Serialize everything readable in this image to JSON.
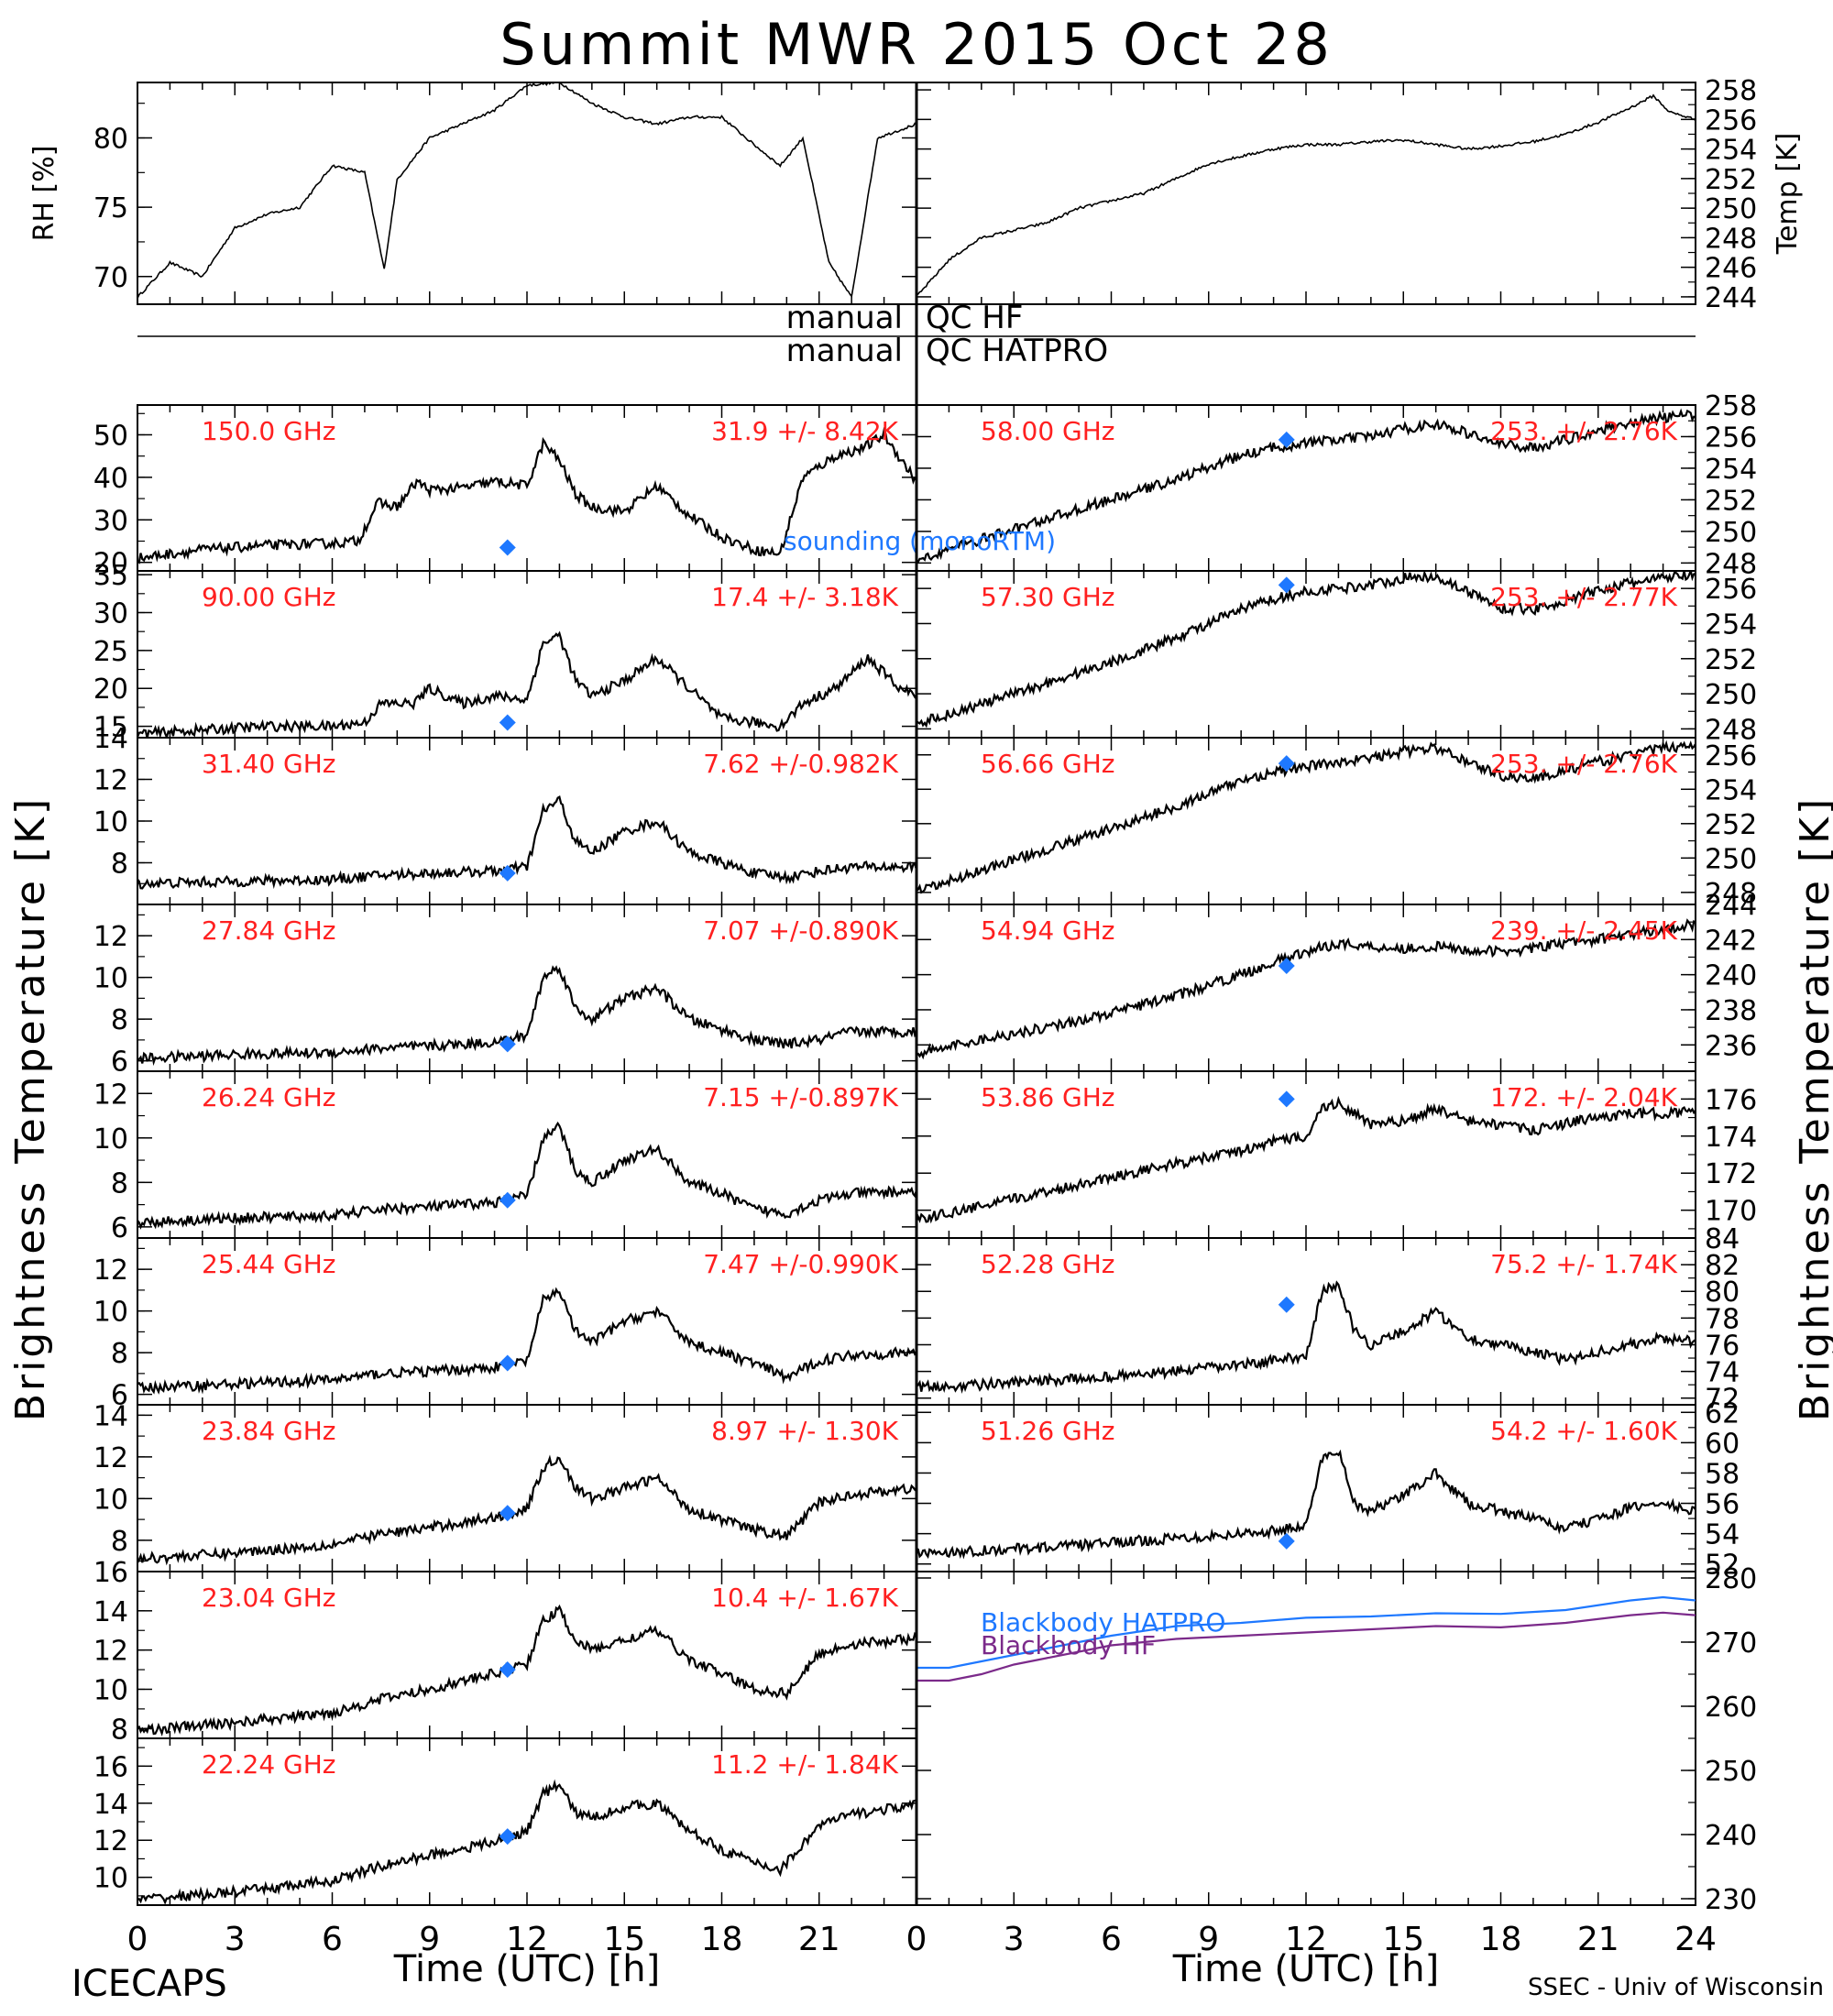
{
  "title": "Summit MWR 2015 Oct 28",
  "footer": {
    "left": "ICECAPS",
    "right": "SSEC - Univ of Wisconsin"
  },
  "x_axis": {
    "label": "Time (UTC) [h]",
    "ticks": [
      0,
      3,
      6,
      9,
      12,
      15,
      18,
      21,
      24
    ],
    "left_ticks": [
      "0",
      "3",
      "6",
      "9",
      "12",
      "15",
      "18",
      "21",
      ""
    ],
    "right_ticks": [
      "0",
      "3",
      "6",
      "9",
      "12",
      "15",
      "18",
      "21",
      "24"
    ],
    "xlim": [
      0,
      24
    ]
  },
  "y_axis_labels": {
    "left": "Brightness Temperature [K]",
    "right": "Brightness Temperature [K]"
  },
  "qc": {
    "labels_left": [
      "manual",
      "manual"
    ],
    "labels_right": [
      "QC HF",
      "QC HATPRO"
    ]
  },
  "colors": {
    "trace": "#000000",
    "annotation": "#ff2020",
    "sounding": "#1e78ff",
    "blackbody_hatpro": "#1e78ff",
    "blackbody_hf": "#7b2a8a"
  },
  "legend_sounding": "sounding (monoRTM)",
  "chart_data": [
    {
      "type": "line",
      "id": "rh",
      "ylabel": "RH [%]",
      "ylim": [
        68,
        84
      ],
      "yticks": [
        "70",
        "75",
        "80"
      ],
      "x": [
        0,
        1,
        2,
        3,
        4,
        5,
        6,
        7,
        7.6,
        8,
        9,
        10,
        11,
        12,
        13,
        14,
        15,
        16,
        17,
        18,
        19,
        19.8,
        20.5,
        21.3,
        22,
        22.8,
        24
      ],
      "y": [
        68.5,
        71,
        70,
        73.5,
        74.5,
        75,
        78,
        77.5,
        70.5,
        77,
        80,
        81,
        82,
        83.8,
        84,
        82.5,
        81.5,
        81,
        81.5,
        81.5,
        79.5,
        78,
        80,
        71,
        68.5,
        80,
        81
      ]
    },
    {
      "type": "line",
      "id": "temp",
      "ylabel": "Temp [K]",
      "ylim": [
        243.5,
        258.5
      ],
      "yticks": [
        "244",
        "246",
        "248",
        "250",
        "252",
        "254",
        "256",
        "258"
      ],
      "x": [
        0,
        1,
        2,
        3,
        4,
        5,
        6,
        7,
        8,
        9,
        10,
        11,
        12,
        13,
        14,
        15,
        16,
        17,
        18,
        19,
        20,
        21,
        22,
        22.7,
        23.2,
        24
      ],
      "y": [
        244,
        246.5,
        248,
        248.5,
        249,
        250,
        250.5,
        251,
        252,
        253,
        253.5,
        254,
        254.3,
        254.3,
        254.5,
        254.6,
        254.3,
        254.0,
        254.2,
        254.5,
        255,
        255.8,
        256.8,
        257.6,
        256.5,
        256
      ]
    },
    {
      "type": "line",
      "id": "ch150",
      "label": "150.0 GHz",
      "stats": "31.9 +/- 8.42K",
      "ylim": [
        18,
        57
      ],
      "yticks": [
        "20",
        "30",
        "40",
        "50"
      ],
      "sounding": [
        11.4,
        23.5
      ],
      "x": [
        0,
        2,
        4,
        6,
        6.8,
        7.4,
        8,
        8.6,
        9,
        10,
        11,
        12,
        12.5,
        13,
        13.5,
        14,
        15,
        16,
        17,
        18,
        19,
        19.8,
        20.5,
        21.5,
        22.4,
        23,
        24
      ],
      "y": [
        21,
        23,
        24,
        24.5,
        25,
        34,
        33,
        39,
        37,
        37.5,
        39,
        38,
        48,
        44,
        36,
        33,
        32,
        38,
        31,
        26,
        23,
        22,
        40,
        45,
        47,
        50,
        39
      ]
    },
    {
      "type": "line",
      "id": "ch090",
      "label": "90.00 GHz",
      "stats": "17.4 +/- 3.18K",
      "ylim": [
        13.5,
        35.5
      ],
      "yticks": [
        "15",
        "20",
        "25",
        "30",
        "35"
      ],
      "sounding": [
        11.4,
        15.5
      ],
      "x": [
        0,
        2,
        4,
        6,
        7,
        7.5,
        8.5,
        9,
        10,
        11,
        12,
        12.5,
        13,
        13.5,
        14,
        15,
        16,
        17,
        18,
        19,
        19.8,
        20.5,
        21.5,
        22.5,
        23.5,
        24
      ],
      "y": [
        14,
        14.5,
        15,
        15,
        15.5,
        18,
        18,
        20,
        18,
        19,
        18.5,
        26,
        27,
        21,
        19,
        21,
        24,
        20,
        16,
        15.5,
        15,
        18,
        20,
        24,
        20,
        19
      ]
    },
    {
      "type": "line",
      "id": "ch3140",
      "label": "31.40 GHz",
      "stats": "7.62 +/-0.982K",
      "ylim": [
        6,
        14
      ],
      "yticks": [
        "8",
        "10",
        "12",
        "14"
      ],
      "sounding": [
        11.4,
        7.5
      ],
      "x": [
        0,
        3,
        6,
        7.5,
        9,
        11,
        12,
        12.5,
        13,
        13.5,
        14,
        15,
        16,
        17,
        18,
        19,
        20,
        21,
        22,
        24
      ],
      "y": [
        7,
        7.1,
        7.2,
        7.4,
        7.5,
        7.6,
        7.8,
        10.5,
        11,
        9,
        8.5,
        9.5,
        10,
        8.5,
        8,
        7.5,
        7.3,
        7.6,
        7.8,
        7.8
      ]
    },
    {
      "type": "line",
      "id": "ch2784",
      "label": "27.84 GHz",
      "stats": "7.07 +/-0.890K",
      "ylim": [
        5.5,
        13.5
      ],
      "yticks": [
        "6",
        "8",
        "10",
        "12"
      ],
      "sounding": [
        11.4,
        6.8
      ],
      "x": [
        0,
        3,
        6,
        7.5,
        9,
        11,
        12,
        12.5,
        13,
        13.5,
        14,
        15,
        16,
        17,
        18,
        19,
        20,
        21,
        22,
        24
      ],
      "y": [
        6.1,
        6.3,
        6.4,
        6.6,
        6.7,
        6.9,
        7.2,
        10,
        10.5,
        8.5,
        8,
        9,
        9.5,
        8,
        7.5,
        7,
        6.8,
        7,
        7.4,
        7.4
      ]
    },
    {
      "type": "line",
      "id": "ch2624",
      "label": "26.24 GHz",
      "stats": "7.15 +/-0.897K",
      "ylim": [
        5.5,
        13
      ],
      "yticks": [
        "6",
        "8",
        "10",
        "12"
      ],
      "sounding": [
        11.4,
        7.2
      ],
      "x": [
        0,
        3,
        6,
        7.5,
        9,
        11,
        12,
        12.5,
        13,
        13.5,
        14,
        15,
        16,
        17,
        18,
        19,
        20,
        21,
        22,
        24
      ],
      "y": [
        6.2,
        6.4,
        6.5,
        6.8,
        6.9,
        7.1,
        7.4,
        10,
        10.5,
        8.5,
        8,
        9,
        9.5,
        8,
        7.5,
        6.8,
        6.6,
        7.2,
        7.5,
        7.6
      ]
    },
    {
      "type": "line",
      "id": "ch2544",
      "label": "25.44 GHz",
      "stats": "7.47 +/-0.990K",
      "ylim": [
        5.5,
        13.5
      ],
      "yticks": [
        "6",
        "8",
        "10",
        "12"
      ],
      "sounding": [
        11.4,
        7.5
      ],
      "x": [
        0,
        3,
        6,
        7.5,
        9,
        11,
        12,
        12.5,
        13,
        13.5,
        14,
        15,
        16,
        17,
        18,
        19,
        20,
        21,
        22,
        24
      ],
      "y": [
        6.3,
        6.5,
        6.7,
        7,
        7.1,
        7.3,
        7.6,
        10.5,
        11,
        9,
        8.5,
        9.5,
        10,
        8.5,
        8,
        7.5,
        6.8,
        7.6,
        7.9,
        8
      ]
    },
    {
      "type": "line",
      "id": "ch2384",
      "label": "23.84 GHz",
      "stats": "8.97 +/- 1.30K",
      "ylim": [
        6.5,
        14.5
      ],
      "yticks": [
        "8",
        "10",
        "12",
        "14"
      ],
      "sounding": [
        11.4,
        9.3
      ],
      "x": [
        0,
        3,
        6,
        7.5,
        9,
        11,
        12,
        12.5,
        13,
        13.5,
        14,
        15,
        16,
        17,
        18,
        19,
        20,
        21,
        22,
        24
      ],
      "y": [
        7.1,
        7.4,
        7.8,
        8.3,
        8.6,
        9.1,
        9.5,
        11.5,
        12,
        10.5,
        10,
        10.5,
        11,
        9.5,
        9,
        8.5,
        8.2,
        9.8,
        10.2,
        10.5
      ]
    },
    {
      "type": "line",
      "id": "ch2304",
      "label": "23.04 GHz",
      "stats": "10.4 +/- 1.67K",
      "ylim": [
        7.5,
        16
      ],
      "yticks": [
        "8",
        "10",
        "12",
        "14",
        "16"
      ],
      "sounding": [
        11.4,
        11
      ],
      "x": [
        0,
        3,
        6,
        7.5,
        9,
        11,
        12,
        12.5,
        13,
        13.5,
        14,
        15,
        16,
        17,
        18,
        19,
        20,
        21,
        22,
        24
      ],
      "y": [
        7.9,
        8.3,
        8.8,
        9.5,
        10,
        10.8,
        11.3,
        13.5,
        14,
        12.5,
        12,
        12.5,
        13,
        11.5,
        10.8,
        10,
        9.8,
        11.8,
        12.3,
        12.6
      ]
    },
    {
      "type": "line",
      "id": "ch2224",
      "label": "22.24 GHz",
      "stats": "11.2 +/- 1.84K",
      "ylim": [
        8.5,
        17.5
      ],
      "yticks": [
        "10",
        "12",
        "14",
        "16"
      ],
      "sounding": [
        11.4,
        12.2
      ],
      "x": [
        0,
        3,
        6,
        7.5,
        9,
        11,
        12,
        12.5,
        13,
        13.5,
        14,
        15,
        16,
        17,
        18,
        19,
        19.8,
        21,
        22,
        24
      ],
      "y": [
        8.8,
        9.2,
        9.8,
        10.6,
        11.2,
        11.9,
        12.5,
        14.5,
        15,
        13.5,
        13.2,
        13.8,
        14,
        12.5,
        11.5,
        10.8,
        10.4,
        12.8,
        13.4,
        13.9
      ]
    },
    {
      "type": "line",
      "id": "ch5800",
      "label": "58.00 GHz",
      "stats": "253. +/- 2.76K",
      "ylim": [
        247.5,
        258
      ],
      "yticks": [
        "248",
        "250",
        "252",
        "254",
        "256",
        "258"
      ],
      "sounding": [
        11.4,
        255.8
      ],
      "x": [
        0,
        2,
        4,
        6,
        8,
        10,
        11,
        12,
        13,
        14,
        15,
        16,
        17,
        18,
        19,
        20,
        21,
        22,
        23,
        24
      ],
      "y": [
        248.2,
        249.5,
        250.8,
        252,
        253.3,
        254.8,
        255.3,
        255.6,
        255.8,
        256,
        256.5,
        256.8,
        256.2,
        255.5,
        255.3,
        255.8,
        256.4,
        256.9,
        257.2,
        257.4
      ]
    },
    {
      "type": "line",
      "id": "ch5730",
      "label": "57.30 GHz",
      "stats": "253. +/- 2.77K",
      "ylim": [
        247.5,
        257
      ],
      "yticks": [
        "248",
        "250",
        "252",
        "254",
        "256"
      ],
      "sounding": [
        11.4,
        256.2
      ],
      "x": [
        0,
        2,
        4,
        6,
        8,
        10,
        11,
        12,
        13,
        14,
        15,
        16,
        17,
        18,
        19,
        20,
        21,
        22,
        23,
        24
      ],
      "y": [
        248.3,
        249.4,
        250.6,
        251.8,
        253.2,
        254.8,
        255.4,
        255.8,
        256,
        256.2,
        256.6,
        256.7,
        255.8,
        254.9,
        254.8,
        255.3,
        255.9,
        256.3,
        256.6,
        256.8
      ]
    },
    {
      "type": "line",
      "id": "ch5666",
      "label": "56.66 GHz",
      "stats": "253. +/- 2.76K",
      "ylim": [
        247.3,
        257
      ],
      "yticks": [
        "248",
        "250",
        "252",
        "254",
        "256"
      ],
      "sounding": [
        11.4,
        255.5
      ],
      "x": [
        0,
        2,
        4,
        6,
        8,
        10,
        11,
        12,
        13,
        14,
        15,
        16,
        17,
        18,
        19,
        20,
        21,
        22,
        23,
        24
      ],
      "y": [
        248,
        249.3,
        250.5,
        251.7,
        253,
        254.5,
        255,
        255.3,
        255.6,
        255.8,
        256.2,
        256.4,
        255.6,
        254.8,
        254.6,
        255.1,
        255.6,
        256,
        256.4,
        256.6
      ]
    },
    {
      "type": "line",
      "id": "ch5494",
      "label": "54.94 GHz",
      "stats": "239. +/- 2.45K",
      "ylim": [
        234.5,
        244
      ],
      "yticks": [
        "236",
        "238",
        "240",
        "242",
        "244"
      ],
      "sounding": [
        11.4,
        240.5
      ],
      "x": [
        0,
        2,
        4,
        6,
        8,
        10,
        11,
        12,
        13,
        14,
        15,
        16,
        17,
        18,
        19,
        20,
        21,
        22,
        23,
        24
      ],
      "y": [
        235.5,
        236.3,
        237,
        237.8,
        238.8,
        240,
        240.7,
        241.3,
        241.8,
        241.6,
        241.5,
        241.6,
        241.4,
        241.3,
        241.5,
        241.8,
        242,
        242.3,
        242.6,
        242.9
      ]
    },
    {
      "type": "line",
      "id": "ch5386",
      "label": "53.86 GHz",
      "stats": "172. +/- 2.04K",
      "ylim": [
        168.5,
        177.5
      ],
      "yticks": [
        "170",
        "172",
        "174",
        "176"
      ],
      "sounding": [
        11.4,
        176
      ],
      "x": [
        0,
        2,
        4,
        6,
        8,
        10,
        11,
        12,
        12.5,
        13,
        14,
        15,
        16,
        17,
        18,
        19,
        20,
        21,
        22,
        24
      ],
      "y": [
        169.5,
        170.2,
        171,
        171.8,
        172.5,
        173.2,
        173.7,
        174,
        175.5,
        175.8,
        174.6,
        174.8,
        175.5,
        174.8,
        174.6,
        174.3,
        174.7,
        175,
        175.2,
        175.3
      ]
    },
    {
      "type": "line",
      "id": "ch5228",
      "label": "52.28 GHz",
      "stats": "75.2 +/- 1.74K",
      "ylim": [
        71.5,
        84
      ],
      "yticks": [
        "72",
        "74",
        "76",
        "78",
        "80",
        "82",
        "84"
      ],
      "sounding": [
        11.4,
        79
      ],
      "x": [
        0,
        2,
        4,
        6,
        8,
        10,
        11,
        12,
        12.5,
        13,
        13.5,
        14,
        15,
        16,
        17,
        18,
        19,
        20,
        21,
        22,
        23,
        24
      ],
      "y": [
        72.8,
        73,
        73.3,
        73.6,
        74,
        74.5,
        74.8,
        75.2,
        80,
        80.5,
        77,
        76,
        77,
        78.5,
        76.5,
        76,
        75.5,
        74.8,
        75.5,
        76,
        76.5,
        76.2
      ]
    },
    {
      "type": "line",
      "id": "ch5126",
      "label": "51.26 GHz",
      "stats": "54.2 +/- 1.60K",
      "ylim": [
        51.5,
        62.5
      ],
      "yticks": [
        "52",
        "54",
        "56",
        "58",
        "60",
        "62"
      ],
      "sounding": [
        11.4,
        53.5
      ],
      "x": [
        0,
        2,
        4,
        6,
        8,
        10,
        11,
        12,
        12.5,
        13,
        13.5,
        14,
        15,
        16,
        17,
        18,
        19,
        20,
        21,
        22,
        23,
        24
      ],
      "y": [
        52.7,
        52.9,
        53.1,
        53.4,
        53.7,
        54,
        54.2,
        54.5,
        59,
        59.5,
        56,
        55.5,
        56.5,
        58,
        56,
        55.5,
        55,
        54.3,
        55,
        55.7,
        56,
        55.4
      ]
    },
    {
      "type": "line",
      "id": "blackbody",
      "ylabel": "Temp [K]",
      "ylim": [
        229,
        281
      ],
      "yticks": [
        "230",
        "240",
        "250",
        "260",
        "270",
        "280"
      ],
      "series": [
        {
          "name": "Blackbody HATPRO",
          "x": [
            0,
            1,
            2,
            3,
            4,
            6,
            8,
            10,
            12,
            14,
            16,
            18,
            20,
            22,
            23,
            24
          ],
          "y": [
            266,
            266,
            267,
            268,
            269,
            271,
            272.5,
            273,
            273.8,
            274,
            274.5,
            274.4,
            275,
            276.5,
            277,
            276.5
          ]
        },
        {
          "name": "Blackbody HF",
          "x": [
            0,
            1,
            2,
            3,
            4,
            6,
            8,
            10,
            12,
            14,
            16,
            18,
            20,
            22,
            23,
            24
          ],
          "y": [
            264,
            264,
            265,
            266.5,
            267.5,
            269.5,
            270.5,
            271,
            271.5,
            272,
            272.5,
            272.3,
            273,
            274.2,
            274.6,
            274.2
          ]
        }
      ]
    }
  ]
}
